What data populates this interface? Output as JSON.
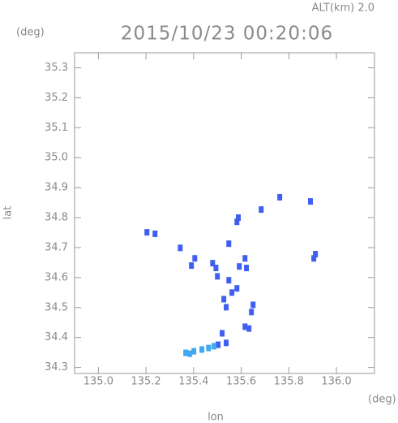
{
  "chart_data": {
    "type": "scatter",
    "title": "2015/10/23 00:20:06",
    "subtitle": "ALT(km) 2.0",
    "y_unit": "(deg)",
    "x_unit": "(deg)",
    "xlabel": "lon",
    "ylabel": "lat",
    "xlim": [
      134.9,
      136.16
    ],
    "ylim": [
      34.28,
      35.35
    ],
    "xticks": [
      {
        "value": 135.0,
        "label": "135.0"
      },
      135.2,
      135.4,
      135.6,
      135.8,
      {
        "value": 136.0,
        "label": "136.0"
      }
    ],
    "yticks": [
      34.3,
      34.4,
      34.5,
      34.6,
      34.7,
      34.8,
      34.9,
      {
        "value": 35.0,
        "label": "35.0"
      },
      35.1,
      35.2,
      35.3
    ],
    "series": [
      {
        "color": "#3f5ff0",
        "x": [
          135.204,
          135.238,
          135.344,
          135.391,
          135.405,
          135.48,
          135.494,
          135.5,
          135.548,
          135.527,
          135.537,
          135.561,
          135.582,
          135.592,
          135.616,
          135.622,
          135.548,
          135.582,
          135.588,
          135.684,
          135.762,
          135.891,
          135.905,
          135.912,
          135.65,
          135.643,
          135.616,
          135.633,
          135.537,
          135.52,
          135.503
        ],
        "values": [
          34.751,
          34.746,
          34.699,
          34.64,
          34.664,
          34.648,
          34.632,
          34.604,
          34.591,
          34.528,
          34.501,
          34.55,
          34.564,
          34.637,
          34.664,
          34.632,
          34.713,
          34.786,
          34.8,
          34.827,
          34.868,
          34.854,
          34.664,
          34.678,
          34.509,
          34.485,
          34.436,
          34.43,
          34.382,
          34.414,
          34.376
        ]
      },
      {
        "color": "#3fa8f0",
        "x": [
          135.367,
          135.384,
          135.401,
          135.435,
          135.463,
          135.486
        ],
        "values": [
          34.349,
          34.346,
          34.354,
          34.36,
          34.365,
          34.371
        ]
      }
    ]
  }
}
